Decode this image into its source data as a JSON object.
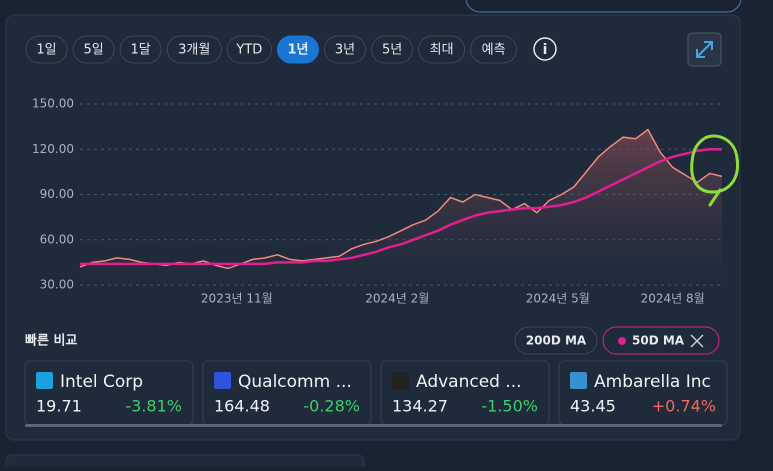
{
  "tabs": [
    "1일",
    "5일",
    "1달",
    "3개월",
    "YTD",
    "1년",
    "3년",
    "5년",
    "최대",
    "예측"
  ],
  "active_tab": 5,
  "chart_data": {
    "type": "line",
    "x": [
      0,
      1,
      2,
      3,
      4,
      5,
      6,
      7,
      8,
      9,
      10,
      11,
      12,
      13,
      14,
      15,
      16,
      17,
      18,
      19,
      20,
      21,
      22,
      23,
      24,
      25,
      26,
      27,
      28,
      29,
      30,
      31,
      32,
      33,
      34,
      35,
      36,
      37,
      38,
      39,
      40,
      41,
      42,
      43,
      44,
      45,
      46,
      47,
      48,
      49,
      50,
      51,
      52
    ],
    "series": [
      {
        "color": "#f28b80",
        "values": [
          42,
          45,
          46,
          48,
          47,
          45,
          44,
          43,
          45,
          44,
          46,
          43,
          41,
          44,
          47,
          48,
          50,
          47,
          46,
          47,
          48,
          49,
          54,
          57,
          59,
          62,
          66,
          70,
          73,
          79,
          88,
          85,
          90,
          88,
          86,
          80,
          84,
          78,
          86,
          90,
          95,
          105,
          115,
          122,
          128,
          127,
          133,
          118,
          108,
          103,
          98,
          104,
          102
        ]
      },
      {
        "name": "50D MA",
        "color": "#e0208f",
        "values": [
          44,
          44,
          44,
          44,
          44,
          44,
          44,
          44,
          44,
          44,
          44,
          44,
          44,
          44,
          44,
          44,
          45,
          45,
          45,
          46,
          46,
          47,
          48,
          50,
          52,
          55,
          57,
          60,
          63,
          66,
          70,
          73,
          76,
          78,
          79,
          80,
          81,
          81,
          82,
          83,
          85,
          88,
          92,
          96,
          100,
          104,
          108,
          112,
          115,
          117,
          119,
          120,
          120
        ]
      }
    ],
    "xlim": [
      0,
      52
    ],
    "xticks": [
      {
        "value": 12.7,
        "label": "2023년 11월"
      },
      {
        "value": 25.7,
        "label": "2024년 2월"
      },
      {
        "value": 38.7,
        "label": "2024년 5월"
      },
      {
        "value": 48,
        "label": "2024년 8월"
      }
    ],
    "ylim": [
      30,
      150
    ],
    "yticks": [
      {
        "value": 30,
        "label": "30.00"
      },
      {
        "value": 60,
        "label": "60.00"
      },
      {
        "value": 90,
        "label": "90.00"
      },
      {
        "value": 120,
        "label": "120.00"
      },
      {
        "value": 150,
        "label": "150.00"
      }
    ],
    "grid": true
  },
  "quick_compare": {
    "title": "빠른 비교",
    "buttons": [
      "200D MA",
      "50D MA"
    ],
    "cards": [
      {
        "name": "Intel Corp",
        "price": "19.71",
        "change": "-3.81%"
      },
      {
        "name": "Qualcomm ...",
        "price": "164.48",
        "change": "-0.28%"
      },
      {
        "name": "Advanced ...",
        "price": "134.27",
        "change": "-1.50%"
      },
      {
        "name": "Ambarella Inc",
        "price": "43.45",
        "change": "+0.74%"
      }
    ]
  }
}
